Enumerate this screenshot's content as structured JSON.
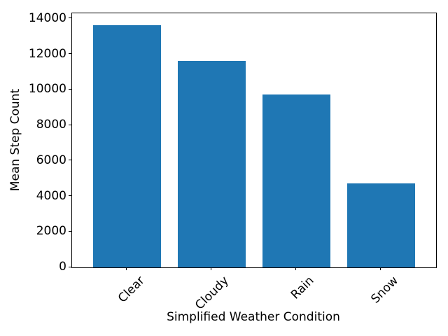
{
  "chart_data": {
    "type": "bar",
    "title": "",
    "xlabel": "Simplified Weather Condition",
    "ylabel": "Mean Step Count",
    "categories": [
      "Clear",
      "Cloudy",
      "Rain",
      "Snow"
    ],
    "values": [
      13650,
      11650,
      9750,
      4750
    ],
    "yticks": [
      0,
      2000,
      4000,
      6000,
      8000,
      10000,
      12000,
      14000
    ],
    "ylim": [
      0,
      14315
    ],
    "grid": false,
    "legend": "none",
    "tick_label_rotation_deg": 45,
    "bar_color": "#1f77b4",
    "background_color": "#ffffff",
    "text_color": "#000000"
  }
}
